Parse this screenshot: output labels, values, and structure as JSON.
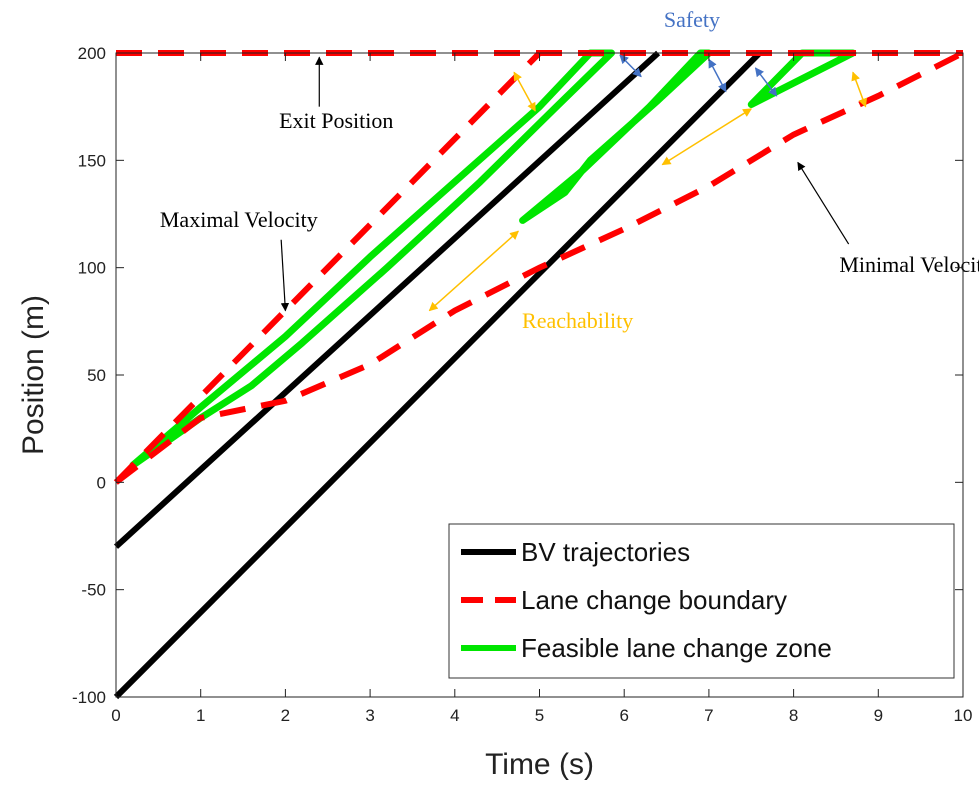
{
  "chart_data": {
    "type": "line",
    "xlabel": "Time (s)",
    "ylabel": "Position (m)",
    "xlim": [
      0,
      10
    ],
    "ylim": [
      -100,
      200
    ],
    "xticks": [
      0,
      1,
      2,
      3,
      4,
      5,
      6,
      7,
      8,
      9,
      10
    ],
    "yticks": [
      -100,
      -50,
      0,
      50,
      100,
      150,
      200
    ],
    "grid": false,
    "legend_position": "bottom-right",
    "colors": {
      "bv": "#000000",
      "boundary": "#ff0000",
      "feasible": "#00e600",
      "safety": "#4472c4",
      "reachability": "#ffc000"
    },
    "series": [
      {
        "name": "BV trajectories",
        "style": "solid",
        "color": "#000000",
        "segments": [
          [
            [
              0,
              -30
            ],
            [
              6.4,
              200
            ]
          ],
          [
            [
              0,
              -100
            ],
            [
              7.6,
              200
            ]
          ]
        ]
      },
      {
        "name": "Lane change boundary",
        "style": "dashed",
        "color": "#ff0000",
        "segments": [
          [
            [
              0,
              200
            ],
            [
              10,
              200
            ]
          ],
          [
            [
              0,
              0
            ],
            [
              5,
              200
            ]
          ],
          [
            [
              0,
              0
            ],
            [
              1,
              30
            ],
            [
              2,
              38
            ],
            [
              3,
              55
            ],
            [
              4,
              80
            ],
            [
              5,
              100
            ],
            [
              6,
              118
            ],
            [
              7,
              138
            ],
            [
              8,
              162
            ],
            [
              9,
              180
            ],
            [
              10,
              200
            ]
          ]
        ]
      },
      {
        "name": "Feasible lane change zone",
        "style": "solid",
        "color": "#00e600",
        "segments": [
          [
            [
              0.2,
              8
            ],
            [
              1,
              35
            ],
            [
              2,
              68
            ],
            [
              3,
              105
            ],
            [
              4,
              140
            ],
            [
              5,
              175
            ],
            [
              5.6,
              200
            ],
            [
              5.85,
              200
            ],
            [
              5.2,
              175
            ],
            [
              4.3,
              140
            ],
            [
              3.2,
              100
            ],
            [
              2.2,
              65
            ],
            [
              1.6,
              45
            ],
            [
              1,
              30
            ],
            [
              0.2,
              8
            ]
          ],
          [
            [
              4.8,
              122
            ],
            [
              5.5,
              145
            ],
            [
              6.3,
              175
            ],
            [
              6.9,
              200
            ],
            [
              7.0,
              200
            ],
            [
              6.4,
              178
            ],
            [
              5.6,
              150
            ],
            [
              5.3,
              135
            ],
            [
              4.8,
              122
            ]
          ],
          [
            [
              7.5,
              176
            ],
            [
              8.1,
              200
            ],
            [
              8.7,
              200
            ],
            [
              7.5,
              176
            ]
          ]
        ]
      }
    ],
    "annotations": [
      {
        "text": "Safety",
        "at": [
          6.8,
          212
        ],
        "color": "#4472c4"
      },
      {
        "text": "Exit Position",
        "at": [
          2.6,
          165
        ],
        "color": "#000000"
      },
      {
        "text": "Maximal Velocity",
        "at": [
          1.45,
          119
        ],
        "color": "#000000"
      },
      {
        "text": "Minimal Velocity",
        "at": [
          9.45,
          98
        ],
        "color": "#000000"
      },
      {
        "text": "Reachability",
        "at": [
          5.45,
          72
        ],
        "color": "#ffc000"
      }
    ],
    "annotation_arrows": [
      {
        "kind": "pointer",
        "from": [
          2.4,
          175
        ],
        "to": [
          2.4,
          198
        ]
      },
      {
        "kind": "pointer",
        "from": [
          1.95,
          113
        ],
        "to": [
          2.0,
          80
        ]
      },
      {
        "kind": "pointer",
        "from": [
          8.65,
          111
        ],
        "to": [
          8.05,
          149
        ]
      },
      {
        "kind": "safety",
        "from": [
          5.95,
          199
        ],
        "to": [
          6.2,
          189
        ]
      },
      {
        "kind": "safety",
        "from": [
          7.0,
          197
        ],
        "to": [
          7.2,
          182
        ]
      },
      {
        "kind": "safety",
        "from": [
          7.55,
          193
        ],
        "to": [
          7.8,
          180
        ]
      },
      {
        "kind": "reach",
        "from": [
          4.7,
          191
        ],
        "to": [
          4.95,
          173
        ]
      },
      {
        "kind": "reach",
        "from": [
          8.7,
          191
        ],
        "to": [
          8.85,
          175
        ]
      },
      {
        "kind": "reach",
        "from": [
          3.7,
          80
        ],
        "to": [
          4.75,
          117
        ]
      },
      {
        "kind": "reach",
        "from": [
          6.45,
          148
        ],
        "to": [
          7.5,
          174
        ]
      }
    ]
  }
}
